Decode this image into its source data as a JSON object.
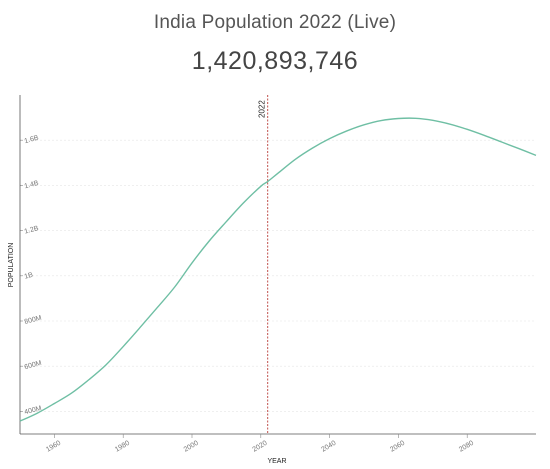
{
  "title": "India Population 2022 (Live)",
  "live_count": "1,420,893,746",
  "chart_data": {
    "type": "line",
    "title": "India Population 2022 (Live)",
    "xlabel": "YEAR",
    "ylabel": "POPULATION",
    "xlim": [
      1950,
      2100
    ],
    "ylim": [
      300000000,
      1800000000
    ],
    "grid": true,
    "line_color": "#6fbfa4",
    "marker_color": "#c0504d",
    "x_ticks": [
      1960,
      1980,
      2000,
      2020,
      2040,
      2060,
      2080
    ],
    "y_ticks": [
      {
        "value": 400000000,
        "label": "400M"
      },
      {
        "value": 600000000,
        "label": "600M"
      },
      {
        "value": 800000000,
        "label": "800M"
      },
      {
        "value": 1000000000,
        "label": "1B"
      },
      {
        "value": 1200000000,
        "label": "1.2B"
      },
      {
        "value": 1400000000,
        "label": "1.4B"
      },
      {
        "value": 1600000000,
        "label": "1.6B"
      }
    ],
    "marker": {
      "x": 2022,
      "label": "2022"
    },
    "series": [
      {
        "x": [
          1950,
          1955,
          1960,
          1965,
          1970,
          1975,
          1980,
          1985,
          1990,
          1995,
          2000,
          2005,
          2010,
          2015,
          2020,
          2022,
          2025,
          2030,
          2035,
          2040,
          2045,
          2050,
          2055,
          2060,
          2065,
          2070,
          2075,
          2080,
          2085,
          2090,
          2095,
          2100
        ],
        "values": [
          357000000,
          392000000,
          435000000,
          481000000,
          540000000,
          606000000,
          687000000,
          773000000,
          861000000,
          951000000,
          1057000000,
          1154000000,
          1240000000,
          1323000000,
          1396000000,
          1417000000,
          1454000000,
          1515000000,
          1565000000,
          1607000000,
          1641000000,
          1668000000,
          1687000000,
          1696000000,
          1697000000,
          1688000000,
          1671000000,
          1648000000,
          1621000000,
          1592000000,
          1563000000,
          1533000000
        ]
      }
    ]
  }
}
